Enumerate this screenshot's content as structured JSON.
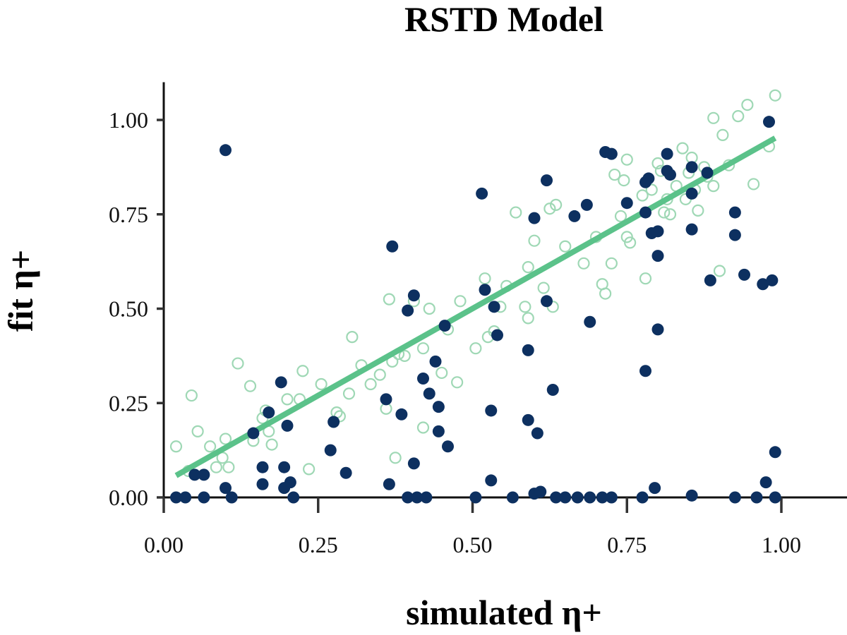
{
  "chart_data": {
    "type": "scatter",
    "title": "RSTD Model",
    "xlabel": "simulated η+",
    "ylabel": "fit η+",
    "xlim": [
      -0.005,
      1.11
    ],
    "ylim": [
      0.0,
      1.1
    ],
    "xticks": [
      "0.00",
      "0.25",
      "0.50",
      "0.75",
      "1.00"
    ],
    "yticks": [
      "0.00",
      "0.25",
      "0.50",
      "0.75",
      "1.00"
    ],
    "grid": false,
    "legend": "none",
    "colors": {
      "filled": "#0d3060",
      "hollow": "#9fd8b5",
      "fit_line": "#5bc28a"
    },
    "series": [
      {
        "style": "hollow-circle",
        "points": [
          [
            0.02,
            0.135
          ],
          [
            0.04,
            0.07
          ],
          [
            0.045,
            0.27
          ],
          [
            0.055,
            0.175
          ],
          [
            0.075,
            0.135
          ],
          [
            0.085,
            0.08
          ],
          [
            0.095,
            0.105
          ],
          [
            0.1,
            0.155
          ],
          [
            0.105,
            0.08
          ],
          [
            0.12,
            0.355
          ],
          [
            0.14,
            0.295
          ],
          [
            0.145,
            0.15
          ],
          [
            0.16,
            0.21
          ],
          [
            0.165,
            0.23
          ],
          [
            0.17,
            0.175
          ],
          [
            0.175,
            0.14
          ],
          [
            0.2,
            0.26
          ],
          [
            0.22,
            0.26
          ],
          [
            0.225,
            0.335
          ],
          [
            0.235,
            0.075
          ],
          [
            0.255,
            0.3
          ],
          [
            0.28,
            0.225
          ],
          [
            0.285,
            0.215
          ],
          [
            0.3,
            0.275
          ],
          [
            0.305,
            0.425
          ],
          [
            0.32,
            0.35
          ],
          [
            0.335,
            0.3
          ],
          [
            0.35,
            0.325
          ],
          [
            0.36,
            0.235
          ],
          [
            0.365,
            0.525
          ],
          [
            0.37,
            0.36
          ],
          [
            0.375,
            0.105
          ],
          [
            0.38,
            0.38
          ],
          [
            0.39,
            0.375
          ],
          [
            0.405,
            0.52
          ],
          [
            0.42,
            0.395
          ],
          [
            0.42,
            0.185
          ],
          [
            0.43,
            0.5
          ],
          [
            0.45,
            0.33
          ],
          [
            0.46,
            0.445
          ],
          [
            0.475,
            0.305
          ],
          [
            0.48,
            0.52
          ],
          [
            0.505,
            0.395
          ],
          [
            0.52,
            0.58
          ],
          [
            0.525,
            0.425
          ],
          [
            0.535,
            0.44
          ],
          [
            0.545,
            0.505
          ],
          [
            0.555,
            0.56
          ],
          [
            0.57,
            0.755
          ],
          [
            0.585,
            0.505
          ],
          [
            0.59,
            0.61
          ],
          [
            0.59,
            0.475
          ],
          [
            0.6,
            0.68
          ],
          [
            0.615,
            0.555
          ],
          [
            0.625,
            0.765
          ],
          [
            0.63,
            0.505
          ],
          [
            0.635,
            0.775
          ],
          [
            0.65,
            0.665
          ],
          [
            0.68,
            0.62
          ],
          [
            0.7,
            0.69
          ],
          [
            0.71,
            0.565
          ],
          [
            0.715,
            0.54
          ],
          [
            0.725,
            0.62
          ],
          [
            0.73,
            0.855
          ],
          [
            0.74,
            0.745
          ],
          [
            0.745,
            0.84
          ],
          [
            0.75,
            0.895
          ],
          [
            0.75,
            0.69
          ],
          [
            0.755,
            0.675
          ],
          [
            0.775,
            0.8
          ],
          [
            0.78,
            0.58
          ],
          [
            0.79,
            0.815
          ],
          [
            0.8,
            0.885
          ],
          [
            0.805,
            0.865
          ],
          [
            0.81,
            0.755
          ],
          [
            0.815,
            0.79
          ],
          [
            0.82,
            0.75
          ],
          [
            0.83,
            0.825
          ],
          [
            0.84,
            0.925
          ],
          [
            0.845,
            0.79
          ],
          [
            0.85,
            0.86
          ],
          [
            0.855,
            0.9
          ],
          [
            0.86,
            0.815
          ],
          [
            0.865,
            0.76
          ],
          [
            0.875,
            0.875
          ],
          [
            0.88,
            0.85
          ],
          [
            0.89,
            0.825
          ],
          [
            0.89,
            1.005
          ],
          [
            0.9,
            0.6
          ],
          [
            0.905,
            0.96
          ],
          [
            0.915,
            0.88
          ],
          [
            0.93,
            1.01
          ],
          [
            0.945,
            1.04
          ],
          [
            0.955,
            0.83
          ],
          [
            0.98,
            0.93
          ],
          [
            0.99,
            1.065
          ]
        ]
      },
      {
        "style": "filled-circle",
        "points": [
          [
            0.02,
            0.0
          ],
          [
            0.035,
            0.0
          ],
          [
            0.05,
            0.06
          ],
          [
            0.065,
            0.06
          ],
          [
            0.065,
            0.0
          ],
          [
            0.1,
            0.92
          ],
          [
            0.1,
            0.025
          ],
          [
            0.11,
            0.0
          ],
          [
            0.145,
            0.17
          ],
          [
            0.16,
            0.08
          ],
          [
            0.16,
            0.035
          ],
          [
            0.17,
            0.225
          ],
          [
            0.19,
            0.305
          ],
          [
            0.195,
            0.08
          ],
          [
            0.195,
            0.025
          ],
          [
            0.2,
            0.19
          ],
          [
            0.205,
            0.04
          ],
          [
            0.21,
            0.0
          ],
          [
            0.27,
            0.125
          ],
          [
            0.275,
            0.2
          ],
          [
            0.295,
            0.065
          ],
          [
            0.36,
            0.26
          ],
          [
            0.365,
            0.035
          ],
          [
            0.37,
            0.665
          ],
          [
            0.385,
            0.22
          ],
          [
            0.395,
            0.495
          ],
          [
            0.395,
            0.0
          ],
          [
            0.405,
            0.535
          ],
          [
            0.405,
            0.09
          ],
          [
            0.41,
            0.0
          ],
          [
            0.42,
            0.315
          ],
          [
            0.425,
            0.0
          ],
          [
            0.43,
            0.275
          ],
          [
            0.44,
            0.36
          ],
          [
            0.445,
            0.175
          ],
          [
            0.445,
            0.24
          ],
          [
            0.455,
            0.455
          ],
          [
            0.46,
            0.135
          ],
          [
            0.505,
            0.0
          ],
          [
            0.515,
            0.805
          ],
          [
            0.52,
            0.55
          ],
          [
            0.53,
            0.23
          ],
          [
            0.53,
            0.045
          ],
          [
            0.535,
            0.505
          ],
          [
            0.54,
            0.43
          ],
          [
            0.565,
            0.0
          ],
          [
            0.59,
            0.39
          ],
          [
            0.59,
            0.205
          ],
          [
            0.6,
            0.74
          ],
          [
            0.6,
            0.01
          ],
          [
            0.605,
            0.17
          ],
          [
            0.61,
            0.015
          ],
          [
            0.62,
            0.84
          ],
          [
            0.62,
            0.52
          ],
          [
            0.63,
            0.285
          ],
          [
            0.635,
            0.0
          ],
          [
            0.65,
            0.0
          ],
          [
            0.665,
            0.745
          ],
          [
            0.67,
            0.0
          ],
          [
            0.685,
            0.775
          ],
          [
            0.69,
            0.465
          ],
          [
            0.69,
            0.0
          ],
          [
            0.71,
            0.0
          ],
          [
            0.715,
            0.915
          ],
          [
            0.725,
            0.91
          ],
          [
            0.725,
            0.0
          ],
          [
            0.75,
            0.78
          ],
          [
            0.775,
            0.0
          ],
          [
            0.78,
            0.755
          ],
          [
            0.78,
            0.335
          ],
          [
            0.78,
            0.835
          ],
          [
            0.785,
            0.845
          ],
          [
            0.79,
            0.7
          ],
          [
            0.795,
            0.025
          ],
          [
            0.8,
            0.705
          ],
          [
            0.8,
            0.64
          ],
          [
            0.8,
            0.445
          ],
          [
            0.815,
            0.91
          ],
          [
            0.815,
            0.865
          ],
          [
            0.82,
            0.855
          ],
          [
            0.855,
            0.875
          ],
          [
            0.855,
            0.805
          ],
          [
            0.855,
            0.71
          ],
          [
            0.855,
            0.005
          ],
          [
            0.88,
            0.86
          ],
          [
            0.885,
            0.575
          ],
          [
            0.925,
            0.695
          ],
          [
            0.925,
            0.755
          ],
          [
            0.925,
            0.0
          ],
          [
            0.94,
            0.59
          ],
          [
            0.96,
            0.0
          ],
          [
            0.97,
            0.565
          ],
          [
            0.975,
            0.04
          ],
          [
            0.98,
            0.995
          ],
          [
            0.985,
            0.575
          ],
          [
            0.99,
            0.12
          ],
          [
            0.99,
            0.0
          ]
        ]
      },
      {
        "style": "line",
        "x": [
          0.02,
          0.99
        ],
        "y": [
          0.058,
          0.952
        ]
      }
    ]
  }
}
